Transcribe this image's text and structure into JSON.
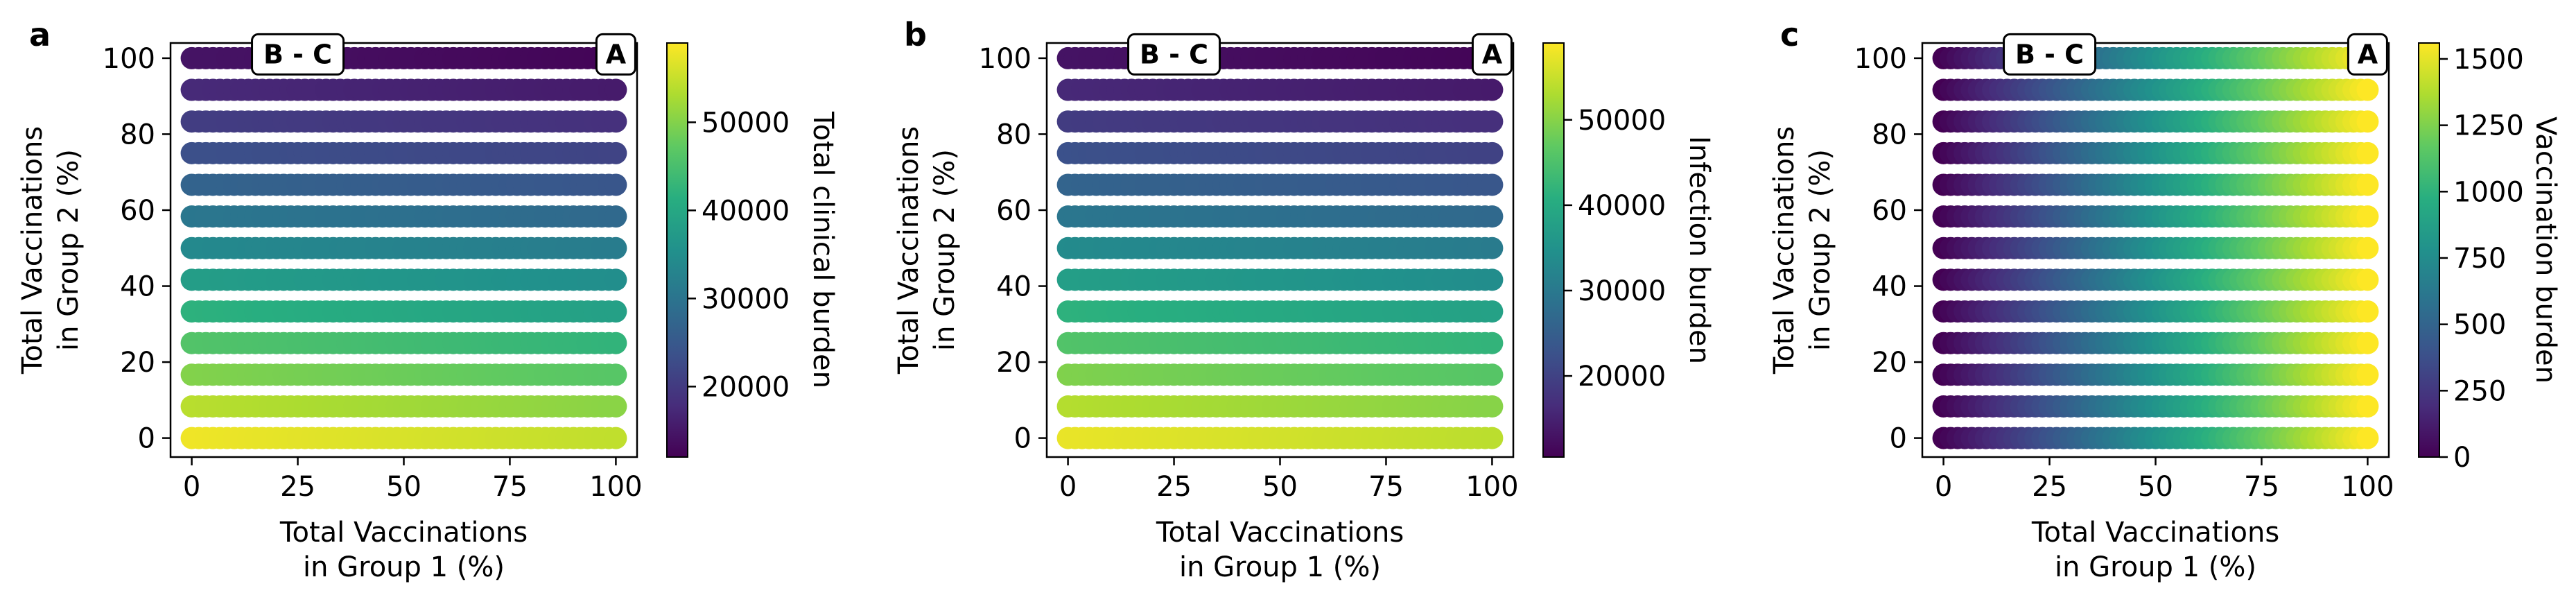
{
  "figure": {
    "panels": [
      {
        "letter": "a",
        "colorbar_label": "Total clinical burden",
        "annotation_left": "B - C",
        "annotation_right": "A"
      },
      {
        "letter": "b",
        "colorbar_label": "Infection burden",
        "annotation_left": "B - C",
        "annotation_right": "A"
      },
      {
        "letter": "c",
        "colorbar_label": "Vaccination burden",
        "annotation_left": "B - C",
        "annotation_right": "A"
      }
    ]
  },
  "chart_data": [
    {
      "type": "scatter",
      "panel": "a",
      "xlabel": "Total Vaccinations\nin Group 1 (%)",
      "ylabel": "Total Vaccinations\nin Group 2 (%)",
      "xlim": [
        -5,
        105
      ],
      "ylim": [
        -5,
        104
      ],
      "xticks": [
        0,
        25,
        50,
        75,
        100
      ],
      "yticks": [
        0,
        20,
        40,
        60,
        80,
        100
      ],
      "rows_y": [
        0,
        8.33,
        16.67,
        25,
        33.33,
        41.67,
        50,
        58.33,
        66.67,
        75,
        83.33,
        91.67,
        100
      ],
      "x_range": [
        0,
        100
      ],
      "color_at_x0": [
        58000,
        54000,
        50000,
        46000,
        42000,
        38000,
        34000,
        30500,
        27000,
        23500,
        20500,
        17500,
        14500
      ],
      "color_at_x100": [
        54500,
        50500,
        46500,
        42500,
        38500,
        35000,
        31500,
        28000,
        24500,
        21500,
        18500,
        15500,
        12500
      ],
      "colorbar": {
        "label": "Total clinical burden",
        "colormap": "viridis",
        "range": [
          12000,
          59000
        ],
        "ticks": [
          20000,
          30000,
          40000,
          50000
        ]
      },
      "annotations": [
        {
          "text": "B - C",
          "x": 25,
          "y": 101
        },
        {
          "text": "A",
          "x": 100,
          "y": 101
        }
      ]
    },
    {
      "type": "scatter",
      "panel": "b",
      "xlabel": "Total Vaccinations\nin Group 1 (%)",
      "ylabel": "Total Vaccinations\nin Group 2 (%)",
      "xlim": [
        -5,
        105
      ],
      "ylim": [
        -5,
        104
      ],
      "xticks": [
        0,
        25,
        50,
        75,
        100
      ],
      "yticks": [
        0,
        20,
        40,
        60,
        80,
        100
      ],
      "rows_y": [
        0,
        8.33,
        16.67,
        25,
        33.33,
        41.67,
        50,
        58.33,
        66.67,
        75,
        83.33,
        91.67,
        100
      ],
      "x_range": [
        0,
        100
      ],
      "color_at_x0": [
        57500,
        53500,
        49500,
        45500,
        41500,
        37500,
        33500,
        29500,
        26000,
        22500,
        19000,
        16000,
        13000
      ],
      "color_at_x100": [
        54000,
        50000,
        46000,
        42000,
        38000,
        34000,
        30500,
        27000,
        23500,
        20000,
        17000,
        14000,
        11000
      ],
      "colorbar": {
        "label": "Infection burden",
        "colormap": "viridis",
        "range": [
          10500,
          59000
        ],
        "ticks": [
          20000,
          30000,
          40000,
          50000
        ]
      },
      "annotations": [
        {
          "text": "B - C",
          "x": 25,
          "y": 101
        },
        {
          "text": "A",
          "x": 100,
          "y": 101
        }
      ]
    },
    {
      "type": "scatter",
      "panel": "c",
      "xlabel": "Total Vaccinations\nin Group 1 (%)",
      "ylabel": "Total Vaccinations\nin Group 2 (%)",
      "xlim": [
        -5,
        105
      ],
      "ylim": [
        -5,
        104
      ],
      "xticks": [
        0,
        25,
        50,
        75,
        100
      ],
      "yticks": [
        0,
        20,
        40,
        60,
        80,
        100
      ],
      "rows_y": [
        0,
        8.33,
        16.67,
        25,
        33.33,
        41.67,
        50,
        58.33,
        66.67,
        75,
        83.33,
        91.67,
        100
      ],
      "x_range": [
        0,
        100
      ],
      "color_at_x0": [
        0,
        0,
        0,
        0,
        0,
        0,
        0,
        0,
        0,
        0,
        0,
        0,
        0
      ],
      "color_at_x100": [
        1560,
        1560,
        1560,
        1560,
        1560,
        1560,
        1560,
        1560,
        1560,
        1560,
        1560,
        1560,
        1560
      ],
      "colorbar": {
        "label": "Vaccination burden",
        "colormap": "viridis",
        "range": [
          0,
          1560
        ],
        "ticks": [
          0,
          250,
          500,
          750,
          1000,
          1250,
          1500
        ]
      },
      "annotations": [
        {
          "text": "B - C",
          "x": 25,
          "y": 101
        },
        {
          "text": "A",
          "x": 100,
          "y": 101
        }
      ]
    }
  ]
}
